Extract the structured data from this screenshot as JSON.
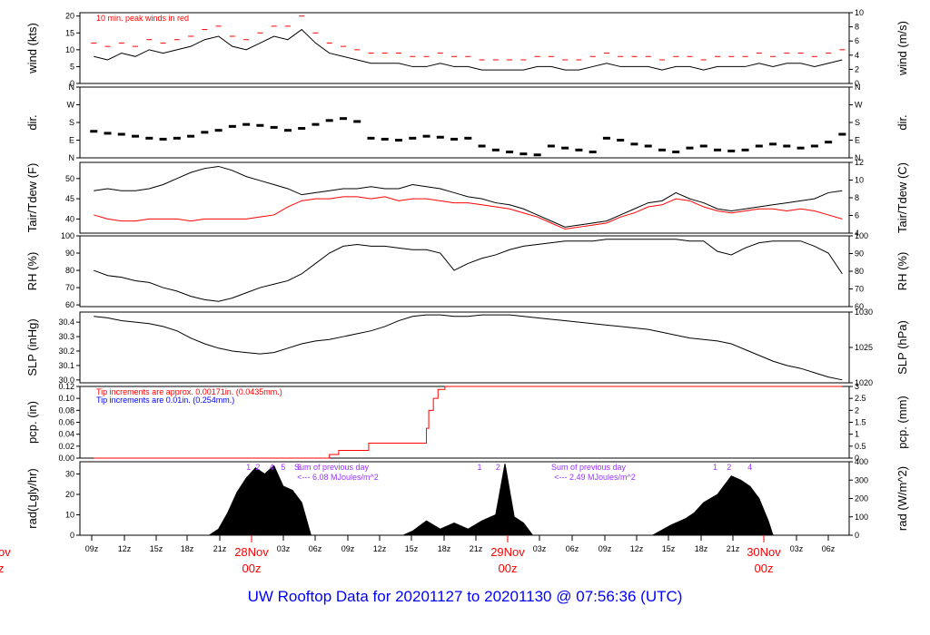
{
  "footer": {
    "prefix": "UW Rooftop Data for",
    "start": "20201127",
    "to": "to",
    "end": "20201130",
    "at": "@",
    "time": "07:56:36",
    "tz": "(UTC)",
    "color": "#0000ff"
  },
  "colors": {
    "main": "#000000",
    "highlight": "#ff0000",
    "note_blue": "#0000ff",
    "annotation": "#9933ff"
  },
  "x_axis": {
    "hour_ticks": [
      "09z",
      "12z",
      "15z",
      "18z",
      "21z",
      "03z",
      "06z",
      "09z",
      "12z",
      "15z",
      "18z",
      "21z",
      "03z",
      "06z",
      "09z",
      "12z",
      "15z",
      "18z",
      "21z",
      "03z",
      "06z"
    ],
    "day_labels": [
      {
        "date": "28Nov",
        "time": "00z"
      },
      {
        "date": "29Nov",
        "time": "00z"
      },
      {
        "date": "30Nov",
        "time": "00z"
      }
    ],
    "left_edge_fragment": {
      "date": "ov",
      "time": "z"
    }
  },
  "chart_data": [
    {
      "type": "line",
      "panel": "wind",
      "ylabel_left": "wind (kts)",
      "ylabel_right": "wind (m/s)",
      "ylim": [
        0,
        21
      ],
      "yticks_left": [
        "0",
        "5",
        "10",
        "15",
        "20"
      ],
      "yticks_right": [
        "0",
        "2",
        "4",
        "6",
        "8",
        "10"
      ],
      "annotation": "10 min. peak winds in red",
      "x": [
        0.06,
        0.12,
        0.18,
        0.24,
        0.3,
        0.36,
        0.42,
        0.48,
        0.54,
        0.6,
        0.66,
        0.72,
        0.78,
        0.84,
        0.9,
        0.96,
        1.02,
        1.08,
        1.14,
        1.2,
        1.26,
        1.32,
        1.38,
        1.44,
        1.5,
        1.56,
        1.62,
        1.68,
        1.74,
        1.8,
        1.86,
        1.92,
        1.98,
        2.04,
        2.1,
        2.16,
        2.22,
        2.28,
        2.34,
        2.4,
        2.46,
        2.52,
        2.58,
        2.64,
        2.7,
        2.76,
        2.82,
        2.88,
        2.94,
        3.0,
        3.06,
        3.12,
        3.18,
        3.24,
        3.3
      ],
      "series": [
        {
          "values": [
            8,
            7,
            9,
            8,
            10,
            9,
            10,
            11,
            13,
            14,
            11,
            10,
            12,
            14,
            13,
            16,
            12,
            9,
            8,
            7,
            6,
            6,
            6,
            5,
            5,
            6,
            5,
            5,
            4,
            4,
            4,
            4,
            5,
            5,
            4,
            4,
            5,
            6,
            5,
            5,
            5,
            4,
            5,
            5,
            4,
            5,
            5,
            5,
            6,
            5,
            6,
            6,
            5,
            6,
            7
          ]
        },
        {
          "values": [
            12,
            11,
            12,
            11,
            13,
            12,
            13,
            14,
            16,
            17,
            14,
            13,
            15,
            17,
            17,
            20,
            15,
            12,
            11,
            10,
            9,
            9,
            9,
            8,
            8,
            9,
            8,
            8,
            7,
            7,
            7,
            7,
            8,
            8,
            7,
            7,
            8,
            9,
            8,
            8,
            8,
            7,
            8,
            8,
            7,
            8,
            8,
            8,
            9,
            8,
            9,
            9,
            8,
            9,
            10
          ]
        }
      ]
    },
    {
      "type": "scatter",
      "panel": "wind direction",
      "ylabel_left": "dir.",
      "ylabel_right": "dir.",
      "yticks_left": [
        "N",
        "E",
        "S",
        "W",
        "N"
      ],
      "yticks_right": [
        "N",
        "E",
        "S",
        "W",
        "N"
      ],
      "ylim": [
        0,
        360
      ],
      "x": [
        0.06,
        0.12,
        0.18,
        0.24,
        0.3,
        0.36,
        0.42,
        0.48,
        0.54,
        0.6,
        0.66,
        0.72,
        0.78,
        0.84,
        0.9,
        0.96,
        1.02,
        1.08,
        1.14,
        1.2,
        1.26,
        1.32,
        1.38,
        1.44,
        1.5,
        1.56,
        1.62,
        1.68,
        1.74,
        1.8,
        1.86,
        1.92,
        1.98,
        2.04,
        2.1,
        2.16,
        2.22,
        2.28,
        2.34,
        2.4,
        2.46,
        2.52,
        2.58,
        2.64,
        2.7,
        2.76,
        2.82,
        2.88,
        2.94,
        3.0,
        3.06,
        3.12,
        3.18,
        3.24,
        3.3
      ],
      "series": [
        {
          "values": [
            135,
            125,
            120,
            110,
            100,
            95,
            100,
            110,
            130,
            140,
            160,
            170,
            165,
            155,
            140,
            150,
            170,
            190,
            200,
            185,
            100,
            95,
            90,
            100,
            110,
            105,
            95,
            100,
            60,
            40,
            30,
            20,
            15,
            60,
            50,
            40,
            30,
            100,
            90,
            70,
            60,
            40,
            30,
            50,
            60,
            40,
            35,
            40,
            60,
            70,
            60,
            50,
            60,
            80,
            120
          ]
        }
      ]
    },
    {
      "type": "line",
      "panel": "air temperature and dew point",
      "ylabel_left": "Tair/Tdew (F)",
      "ylabel_right": "Tair/Tdew (C)",
      "ylim": [
        36.5,
        54
      ],
      "yticks_left": [
        "40",
        "45",
        "50"
      ],
      "yticks_right": [
        "4",
        "6",
        "8",
        "10",
        "12"
      ],
      "x": [
        0.06,
        0.12,
        0.18,
        0.24,
        0.3,
        0.36,
        0.42,
        0.48,
        0.54,
        0.6,
        0.66,
        0.72,
        0.78,
        0.84,
        0.9,
        0.96,
        1.02,
        1.08,
        1.14,
        1.2,
        1.26,
        1.32,
        1.38,
        1.44,
        1.5,
        1.56,
        1.62,
        1.68,
        1.74,
        1.8,
        1.86,
        1.92,
        1.98,
        2.04,
        2.1,
        2.16,
        2.22,
        2.28,
        2.34,
        2.4,
        2.46,
        2.52,
        2.58,
        2.64,
        2.7,
        2.76,
        2.82,
        2.88,
        2.94,
        3.0,
        3.06,
        3.12,
        3.18,
        3.24,
        3.3
      ],
      "series": [
        {
          "values": [
            47,
            47.5,
            47,
            47,
            47.5,
            48.5,
            50,
            51.5,
            52.5,
            53,
            52,
            50.5,
            49.5,
            48.5,
            47.5,
            46,
            46.5,
            47,
            47.5,
            47.5,
            48,
            47.5,
            47.5,
            48.5,
            48,
            47.5,
            46.5,
            45.5,
            45,
            44,
            43.5,
            42.5,
            41,
            39.5,
            38,
            38.5,
            39,
            39.5,
            41,
            42.5,
            44,
            44.5,
            46.5,
            45,
            44,
            42.5,
            42,
            42.5,
            43,
            43.5,
            44,
            44.5,
            45,
            46.5,
            47
          ]
        },
        {
          "values": [
            41,
            40,
            39.5,
            39.5,
            40,
            40,
            40,
            39.5,
            40,
            40,
            40,
            40,
            40.5,
            41,
            43,
            44.5,
            45,
            45,
            45.5,
            45.5,
            45,
            45.5,
            44.5,
            45,
            45,
            44.5,
            44,
            44,
            43.5,
            43,
            42.5,
            41.5,
            40.5,
            39,
            37.5,
            38,
            38.5,
            39,
            40.5,
            41.5,
            43,
            43.5,
            45,
            44.5,
            43,
            42,
            41.5,
            42,
            42.5,
            42.5,
            42,
            42.5,
            42,
            41,
            40
          ]
        }
      ]
    },
    {
      "type": "line",
      "panel": "relative humidity",
      "ylabel_left": "RH (%)",
      "ylabel_right": "RH (%)",
      "ylim": [
        59,
        100
      ],
      "yticks_left": [
        "60",
        "70",
        "80",
        "90",
        "100"
      ],
      "yticks_right": [
        "60",
        "70",
        "80",
        "90",
        "100"
      ],
      "x": [
        0.06,
        0.12,
        0.18,
        0.24,
        0.3,
        0.36,
        0.42,
        0.48,
        0.54,
        0.6,
        0.66,
        0.72,
        0.78,
        0.84,
        0.9,
        0.96,
        1.02,
        1.08,
        1.14,
        1.2,
        1.26,
        1.32,
        1.38,
        1.44,
        1.5,
        1.56,
        1.62,
        1.68,
        1.74,
        1.8,
        1.86,
        1.92,
        1.98,
        2.04,
        2.1,
        2.16,
        2.22,
        2.28,
        2.34,
        2.4,
        2.46,
        2.52,
        2.58,
        2.64,
        2.7,
        2.76,
        2.82,
        2.88,
        2.94,
        3.0,
        3.06,
        3.12,
        3.18,
        3.24,
        3.3
      ],
      "series": [
        {
          "values": [
            80,
            77,
            76,
            74,
            73,
            70,
            68,
            65,
            63,
            62,
            64,
            67,
            70,
            72,
            74,
            78,
            84,
            90,
            94,
            95,
            94,
            94,
            93,
            92,
            92,
            90,
            80,
            84,
            87,
            89,
            92,
            94,
            95,
            96,
            97,
            97,
            97,
            98,
            98,
            98,
            98,
            98,
            98,
            97,
            97,
            91,
            89,
            93,
            96,
            97,
            97,
            97,
            94,
            90,
            78
          ]
        }
      ]
    },
    {
      "type": "line",
      "panel": "sea level pressure",
      "ylabel_left": "SLP (inHg)",
      "ylabel_right": "SLP (hPa)",
      "ylim": [
        29.98,
        30.47
      ],
      "yticks_left": [
        "30.0",
        "30.1",
        "30.2",
        "30.3",
        "30.4"
      ],
      "yticks_right": [
        "1020",
        "1025",
        "1030"
      ],
      "x": [
        0.06,
        0.12,
        0.18,
        0.24,
        0.3,
        0.36,
        0.42,
        0.48,
        0.54,
        0.6,
        0.66,
        0.72,
        0.78,
        0.84,
        0.9,
        0.96,
        1.02,
        1.08,
        1.14,
        1.2,
        1.26,
        1.32,
        1.38,
        1.44,
        1.5,
        1.56,
        1.62,
        1.68,
        1.74,
        1.8,
        1.86,
        1.92,
        1.98,
        2.04,
        2.1,
        2.16,
        2.22,
        2.28,
        2.34,
        2.4,
        2.46,
        2.52,
        2.58,
        2.64,
        2.7,
        2.76,
        2.82,
        2.88,
        2.94,
        3.0,
        3.06,
        3.12,
        3.18,
        3.24,
        3.3
      ],
      "series": [
        {
          "values": [
            30.44,
            30.43,
            30.41,
            30.4,
            30.39,
            30.37,
            30.34,
            30.29,
            30.25,
            30.22,
            30.2,
            30.19,
            30.18,
            30.19,
            30.22,
            30.25,
            30.27,
            30.28,
            30.3,
            30.32,
            30.34,
            30.37,
            30.41,
            30.44,
            30.45,
            30.45,
            30.44,
            30.44,
            30.45,
            30.45,
            30.45,
            30.44,
            30.43,
            30.42,
            30.41,
            30.4,
            30.39,
            30.38,
            30.37,
            30.36,
            30.35,
            30.33,
            30.31,
            30.29,
            30.28,
            30.27,
            30.25,
            30.21,
            30.17,
            30.13,
            30.1,
            30.08,
            30.05,
            30.02,
            30.0
          ]
        }
      ]
    },
    {
      "type": "line",
      "panel": "precipitation",
      "ylabel_left": "pcp. (in)",
      "ylabel_right": "pcp. (mm)",
      "ylim": [
        0,
        0.12
      ],
      "yticks_left": [
        "0.00",
        "0.02",
        "0.04",
        "0.06",
        "0.08",
        "0.10",
        "0.12"
      ],
      "yticks_right": [
        "0",
        "0.5",
        "1",
        "1.5",
        "2",
        "2.5",
        "3"
      ],
      "notes": [
        "Tip increments are approx. 0.00171in. (0.0435mm.)",
        "Tip increments are 0.01in. (0.254mm.)"
      ],
      "x": [
        0.06,
        1.06,
        1.08,
        1.12,
        1.25,
        1.49,
        1.5,
        1.51,
        1.53,
        1.55,
        1.58,
        3.3
      ],
      "series": [
        {
          "values": [
            0,
            0,
            0.006,
            0.013,
            0.025,
            0.025,
            0.05,
            0.08,
            0.1,
            0.115,
            0.12,
            0.12
          ]
        }
      ]
    },
    {
      "type": "area",
      "panel": "solar radiation",
      "ylabel_left": "rad(Lgly/hr)",
      "ylabel_right": "rad (W/m^2)",
      "ylim": [
        0,
        36
      ],
      "yticks_left": [
        "0",
        "10",
        "20",
        "30"
      ],
      "yticks_right": [
        "0",
        "100",
        "200",
        "300",
        "400"
      ],
      "annotations": [
        "Sum of previous day",
        "<--- 6.08 MJoules/m^2",
        "Sum of previous day",
        "<--- 2.49 MJoules/m^2"
      ],
      "hour_markers": [
        {
          "x": 0.73,
          "label": "1"
        },
        {
          "x": 0.77,
          "label": "2"
        },
        {
          "x": 0.83,
          "label": "4"
        },
        {
          "x": 0.88,
          "label": "5"
        },
        {
          "x": 0.95,
          "label": "6"
        },
        {
          "x": 1.73,
          "label": "1"
        },
        {
          "x": 1.81,
          "label": "2"
        },
        {
          "x": 2.75,
          "label": "1"
        },
        {
          "x": 2.81,
          "label": "2"
        },
        {
          "x": 2.9,
          "label": "4"
        }
      ],
      "x": [
        0.56,
        0.6,
        0.64,
        0.68,
        0.72,
        0.76,
        0.8,
        0.84,
        0.88,
        0.92,
        0.96,
        1.0,
        1.4,
        1.44,
        1.5,
        1.56,
        1.62,
        1.68,
        1.74,
        1.8,
        1.84,
        1.88,
        1.92,
        1.96,
        2.0,
        2.48,
        2.56,
        2.62,
        2.66,
        2.7,
        2.76,
        2.82,
        2.86,
        2.9,
        2.94,
        2.98,
        3.0
      ],
      "series": [
        {
          "values": [
            0,
            3,
            11,
            21,
            28,
            33,
            30,
            34,
            24,
            22,
            16,
            0,
            0,
            2,
            7,
            3,
            6,
            3,
            7,
            10,
            35,
            9,
            6,
            0,
            0,
            0,
            5,
            8,
            11,
            16,
            20,
            29,
            27,
            24,
            18,
            7,
            0
          ]
        }
      ]
    }
  ]
}
